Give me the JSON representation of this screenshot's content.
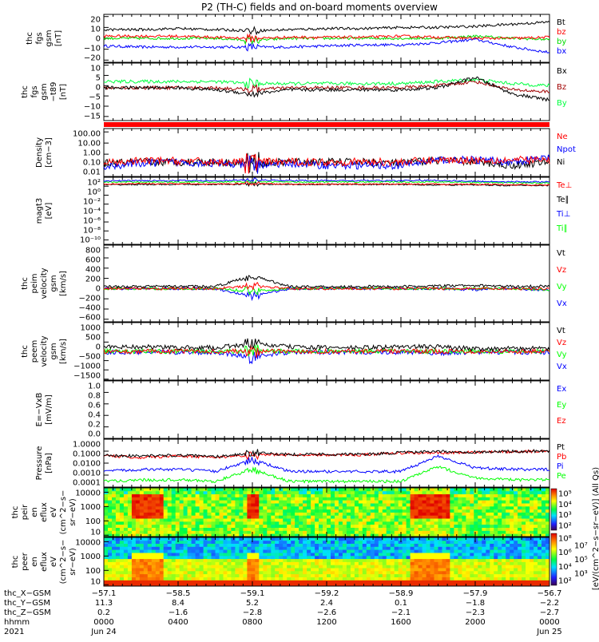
{
  "title": "P2 (TH-C) fields and on-board moments overview",
  "chart_data": {
    "type": "line",
    "x_unit": "hours since 2021 Jun 24 0000 UT",
    "xlim": [
      0,
      24
    ],
    "anchor_hours": [
      0,
      2,
      4,
      6,
      8,
      10,
      12,
      14,
      16,
      18,
      20,
      22,
      24
    ],
    "panels": [
      {
        "id": "fgs",
        "label": [
          "thc",
          "fgs",
          "gsm",
          "[nT]"
        ],
        "scale": "linear",
        "ylim": [
          -22,
          22
        ],
        "ticks": [
          {
            "v": 20,
            "t": "20"
          },
          {
            "v": 10,
            "t": "10"
          },
          {
            "v": 0,
            "t": "0"
          },
          {
            "v": -10,
            "t": "−10"
          },
          {
            "v": -20,
            "t": "−20"
          }
        ],
        "series": [
          {
            "name": "bx",
            "color": "#0000ff",
            "values": [
              -7,
              -8,
              -8,
              -8,
              -8,
              -8,
              -7,
              -6,
              -6,
              -4,
              -1,
              -8,
              -13
            ]
          },
          {
            "name": "by",
            "color": "#00dd00",
            "values": [
              0,
              0,
              0,
              0,
              -2,
              0,
              0,
              0,
              0,
              0,
              2,
              0,
              -1
            ]
          },
          {
            "name": "bz",
            "color": "#ff0000",
            "values": [
              2,
              2,
              2,
              1,
              0,
              1,
              1,
              1,
              2,
              1,
              0,
              0,
              1
            ]
          },
          {
            "name": "Bt",
            "color": "#000000",
            "values": [
              8,
              8,
              9,
              8,
              7,
              8,
              9,
              9,
              10,
              10,
              11,
              13,
              15
            ]
          }
        ]
      },
      {
        "id": "fgs_t89",
        "label": [
          "thc",
          "fgs",
          "gsm",
          "−t89",
          "[nT]"
        ],
        "scale": "linear",
        "ylim": [
          -17,
          11
        ],
        "ticks": [
          {
            "v": 10,
            "t": "10"
          },
          {
            "v": 5,
            "t": "5"
          },
          {
            "v": 0,
            "t": "0"
          },
          {
            "v": -5,
            "t": "−5"
          },
          {
            "v": -10,
            "t": "−10"
          },
          {
            "v": -15,
            "t": "−15"
          }
        ],
        "series": [
          {
            "name": "By",
            "color": "#00ff40",
            "values": [
              2,
              2,
              2,
              2,
              1,
              1,
              1,
              1,
              1,
              2,
              3,
              1,
              0
            ]
          },
          {
            "name": "Bz",
            "color": "#a00000",
            "values": [
              -1,
              -1,
              -1,
              -1,
              -2,
              -1,
              -1,
              -1,
              -1,
              0,
              2,
              -2,
              -3
            ]
          },
          {
            "name": "Bx",
            "color": "#000000",
            "values": [
              -1,
              -1,
              -1,
              -2,
              -4,
              -2,
              -2,
              -2,
              -2,
              -1,
              4,
              -4,
              -7
            ]
          }
        ]
      },
      {
        "id": "density",
        "label": [
          "Density",
          "[cm−3]"
        ],
        "scale": "log",
        "ylim": [
          0.01,
          200
        ],
        "ticks": [
          {
            "v": 100,
            "t": "100.00"
          },
          {
            "v": 10,
            "t": "10.00"
          },
          {
            "v": 1,
            "t": "1.00"
          },
          {
            "v": 0.1,
            "t": "0.10"
          },
          {
            "v": 0.01,
            "t": "0.01"
          }
        ],
        "series": [
          {
            "name": "Ni",
            "color": "#000000",
            "values": [
              0.15,
              0.2,
              0.2,
              0.2,
              0.15,
              0.2,
              0.2,
              0.2,
              0.15,
              0.3,
              0.2,
              0.1,
              0.2
            ]
          },
          {
            "name": "Npot",
            "color": "#0000ff",
            "values": [
              0.08,
              0.15,
              0.2,
              0.15,
              0.1,
              0.15,
              0.1,
              0.1,
              0.1,
              0.3,
              0.3,
              0.2,
              0.5
            ]
          },
          {
            "name": "Ne",
            "color": "#ff0000",
            "values": [
              0.15,
              0.25,
              0.25,
              0.2,
              0.2,
              0.2,
              0.2,
              0.2,
              0.2,
              0.3,
              0.3,
              0.3,
              0.3
            ]
          }
        ]
      },
      {
        "id": "temp",
        "label": [
          "magt3",
          "[eV]"
        ],
        "scale": "log",
        "ylim": [
          1e-11,
          10000.0
        ],
        "ticks": [
          {
            "v": 100,
            "t": "10²"
          },
          {
            "v": 1,
            "t": "10⁰"
          },
          {
            "v": 0.01,
            "t": "10⁻²"
          },
          {
            "v": 0.0001,
            "t": "10⁻⁴"
          },
          {
            "v": 1e-06,
            "t": "10⁻⁶"
          },
          {
            "v": 1e-08,
            "t": "10⁻⁸"
          },
          {
            "v": 1e-10,
            "t": "10⁻¹⁰"
          }
        ],
        "series": [
          {
            "name": "Ti∥",
            "color": "#00ff00",
            "values": [
              800,
              900,
              900,
              900,
              1000,
              900,
              900,
              900,
              900,
              900,
              700,
              600,
              500
            ]
          },
          {
            "name": "Ti⊥",
            "color": "#0000ff",
            "values": [
              1500,
              1800,
              1800,
              1700,
              2500,
              1800,
              1800,
              1800,
              1700,
              2000,
              1200,
              1000,
              900
            ]
          },
          {
            "name": "Te∥",
            "color": "#000000",
            "values": [
              200,
              250,
              250,
              250,
              300,
              250,
              250,
              250,
              250,
              200,
              200,
              150,
              150
            ]
          },
          {
            "name": "Te⊥",
            "color": "#ff0000",
            "values": [
              300,
              350,
              350,
              300,
              400,
              300,
              300,
              300,
              300,
              300,
              250,
              200,
              200
            ]
          }
        ]
      },
      {
        "id": "peim",
        "label": [
          "thc",
          "peim",
          "velocity",
          "gsm",
          "[km/s]"
        ],
        "scale": "linear",
        "ylim": [
          -650,
          850
        ],
        "ticks": [
          {
            "v": 800,
            "t": "800"
          },
          {
            "v": 600,
            "t": "600"
          },
          {
            "v": 400,
            "t": "400"
          },
          {
            "v": 200,
            "t": "200"
          },
          {
            "v": 0,
            "t": "0"
          },
          {
            "v": -200,
            "t": "−200"
          },
          {
            "v": -400,
            "t": "−400"
          },
          {
            "v": -600,
            "t": "−600"
          }
        ],
        "series": [
          {
            "name": "Vx",
            "color": "#0000ff",
            "values": [
              0,
              0,
              0,
              0,
              -150,
              0,
              0,
              0,
              0,
              0,
              -20,
              0,
              -30
            ]
          },
          {
            "name": "Vy",
            "color": "#00ff00",
            "values": [
              0,
              0,
              0,
              0,
              -50,
              0,
              0,
              0,
              0,
              0,
              0,
              0,
              -20
            ]
          },
          {
            "name": "Vz",
            "color": "#ff0000",
            "values": [
              0,
              0,
              0,
              0,
              50,
              0,
              0,
              0,
              0,
              0,
              0,
              0,
              0
            ]
          },
          {
            "name": "Vt",
            "color": "#000000",
            "values": [
              40,
              40,
              40,
              40,
              250,
              40,
              40,
              40,
              40,
              50,
              60,
              40,
              50
            ]
          }
        ]
      },
      {
        "id": "peem",
        "label": [
          "thc",
          "peem",
          "velocity",
          "gsm",
          "[km/s]"
        ],
        "scale": "linear",
        "ylim": [
          -1550,
          1550
        ],
        "ticks": [
          {
            "v": 1000,
            "t": "1000"
          },
          {
            "v": 500,
            "t": "500"
          },
          {
            "v": 0,
            "t": "0"
          },
          {
            "v": -500,
            "t": "−500"
          },
          {
            "v": -1000,
            "t": "−1000"
          },
          {
            "v": -1500,
            "t": "−1500"
          }
        ],
        "series": [
          {
            "name": "Vx",
            "color": "#0000ff",
            "values": [
              -50,
              -50,
              -50,
              -50,
              -300,
              -50,
              -50,
              -50,
              -50,
              -100,
              -50,
              -50,
              -50
            ]
          },
          {
            "name": "Vy",
            "color": "#00ff00",
            "values": [
              0,
              0,
              0,
              0,
              0,
              0,
              0,
              0,
              0,
              0,
              0,
              0,
              0
            ]
          },
          {
            "name": "Vz",
            "color": "#ff0000",
            "values": [
              0,
              0,
              0,
              0,
              0,
              0,
              0,
              0,
              0,
              0,
              0,
              0,
              0
            ]
          },
          {
            "name": "Vt",
            "color": "#000000",
            "values": [
              250,
              250,
              200,
              200,
              400,
              250,
              200,
              200,
              250,
              250,
              150,
              150,
              150
            ]
          }
        ]
      },
      {
        "id": "evxb",
        "label": [
          "E=−VxB",
          "[mV/m]"
        ],
        "scale": "linear",
        "ylim": [
          0,
          1
        ],
        "ticks": [
          {
            "v": 1,
            "t": "1.0"
          },
          {
            "v": 0.8,
            "t": "0.8"
          },
          {
            "v": 0.6,
            "t": "0.6"
          },
          {
            "v": 0.4,
            "t": "0.4"
          },
          {
            "v": 0.2,
            "t": "0.2"
          },
          {
            "v": 0,
            "t": "0.0"
          }
        ],
        "series": [
          {
            "name": "Ez",
            "color": "#ff0000",
            "values": []
          },
          {
            "name": "Ey",
            "color": "#00ff00",
            "values": []
          },
          {
            "name": "Ex",
            "color": "#0000ff",
            "values": []
          }
        ]
      },
      {
        "id": "pressure",
        "label": [
          "Pressure",
          "[nPa]"
        ],
        "scale": "log",
        "ylim": [
          0.0001,
          1
        ],
        "ticks": [
          {
            "v": 1,
            "t": "1.0000"
          },
          {
            "v": 0.1,
            "t": "0.1000"
          },
          {
            "v": 0.01,
            "t": "0.0100"
          },
          {
            "v": 0.001,
            "t": "0.0010"
          },
          {
            "v": 0.0001,
            "t": "0.0001"
          }
        ],
        "series": [
          {
            "name": "Pe",
            "color": "#00ff00",
            "values": [
              0.0003,
              0.0004,
              0.0004,
              0.0003,
              0.003,
              0.0003,
              0.0003,
              0.0003,
              0.0003,
              0.005,
              0.0006,
              0.0004,
              0.0004
            ]
          },
          {
            "name": "Pi",
            "color": "#0000ff",
            "values": [
              0.002,
              0.003,
              0.003,
              0.002,
              0.02,
              0.002,
              0.002,
              0.002,
              0.002,
              0.04,
              0.004,
              0.003,
              0.003
            ]
          },
          {
            "name": "Pb",
            "color": "#ff0000",
            "values": [
              0.04,
              0.03,
              0.04,
              0.03,
              0.05,
              0.05,
              0.05,
              0.05,
              0.07,
              0.07,
              0.08,
              0.09,
              0.1
            ]
          },
          {
            "name": "Pt",
            "color": "#000000",
            "values": [
              0.045,
              0.04,
              0.045,
              0.035,
              0.07,
              0.055,
              0.055,
              0.055,
              0.075,
              0.09,
              0.085,
              0.095,
              0.105
            ]
          }
        ]
      }
    ],
    "spectrograms": [
      {
        "id": "peir",
        "label": [
          "thc",
          "peir",
          "en",
          "eflux",
          "eV",
          "(cm^2−s−",
          "sr−eV)"
        ],
        "ylim": [
          8,
          20000
        ],
        "ticks": [
          {
            "v": 10000,
            "t": "10000"
          },
          {
            "v": 1000,
            "t": "1000"
          },
          {
            "v": 100,
            "t": "100"
          },
          {
            "v": 10,
            "t": "10"
          }
        ],
        "zlim": [
          100,
          100000
        ],
        "colorbar_ticks": [
          "10⁵",
          "10⁴",
          "10³",
          "10²"
        ],
        "hot_intervals_hours": [
          [
            1.5,
            3.2
          ],
          [
            7.8,
            8.4
          ],
          [
            16.4,
            18.6
          ]
        ]
      },
      {
        "id": "peer",
        "label": [
          "thc",
          "peer",
          "en",
          "eflux",
          "eV",
          "(cm^2−s−",
          "sr−eV)"
        ],
        "ylim": [
          8,
          20000
        ],
        "ticks": [
          {
            "v": 10000,
            "t": "10000"
          },
          {
            "v": 1000,
            "t": "1000"
          },
          {
            "v": 100,
            "t": "100"
          },
          {
            "v": 10,
            "t": "10"
          }
        ],
        "zlim": [
          100,
          100000000
        ],
        "colorbar_ticks": [
          "10⁸",
          "10⁷",
          "10⁶",
          "10⁵",
          "10⁴",
          "10³",
          "10²"
        ],
        "hot_intervals_hours": [
          [
            1.5,
            3.2
          ],
          [
            7.8,
            8.4
          ],
          [
            16.4,
            18.6
          ]
        ]
      }
    ],
    "colorbar_label": "[eV/(cm^2−s−sr−eV)] (All Qs)",
    "orbit_axis": {
      "row_labels": [
        "thc_X−GSM",
        "thc_Y−GSM",
        "thc_Z−GSM",
        "hhmm",
        "2021"
      ],
      "ticks": [
        {
          "h": 0,
          "x": "−57.1",
          "y": "11.3",
          "z": "0.2",
          "t": "0000",
          "d": "Jun 24"
        },
        {
          "h": 4,
          "x": "−58.5",
          "y": "8.4",
          "z": "−1.6",
          "t": "0400",
          "d": ""
        },
        {
          "h": 8,
          "x": "−59.1",
          "y": "5.2",
          "z": "−2.8",
          "t": "0800",
          "d": ""
        },
        {
          "h": 12,
          "x": "−59.2",
          "y": "2.4",
          "z": "−2.6",
          "t": "1200",
          "d": ""
        },
        {
          "h": 16,
          "x": "−58.9",
          "y": "0.1",
          "z": "−2.1",
          "t": "1600",
          "d": ""
        },
        {
          "h": 20,
          "x": "−57.9",
          "y": "−1.8",
          "z": "−2.3",
          "t": "2000",
          "d": ""
        },
        {
          "h": 24,
          "x": "−56.7",
          "y": "−2.2",
          "z": "−2.7",
          "t": "0000",
          "d": "Jun 25"
        }
      ]
    }
  }
}
